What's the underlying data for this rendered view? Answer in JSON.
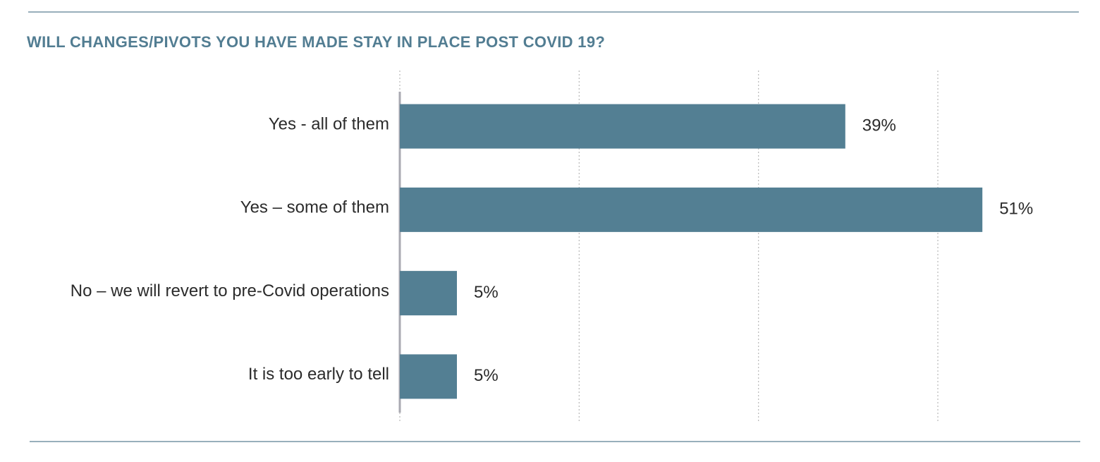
{
  "chart_data": {
    "type": "bar",
    "orientation": "horizontal",
    "title": "WILL CHANGES/PIVOTS YOU HAVE MADE STAY IN PLACE POST COVID 19?",
    "categories": [
      "Yes - all of them",
      "Yes – some of them",
      "No – we will revert to pre-Covid operations",
      "It is too early to tell"
    ],
    "values": [
      39,
      51,
      5,
      5
    ],
    "value_labels": [
      "39%",
      "51%",
      "5%",
      "5%"
    ],
    "color": "#537f93",
    "xlim": [
      0,
      60
    ],
    "xticks": [
      0,
      15.7,
      31.4,
      47.1
    ],
    "grid": true
  }
}
